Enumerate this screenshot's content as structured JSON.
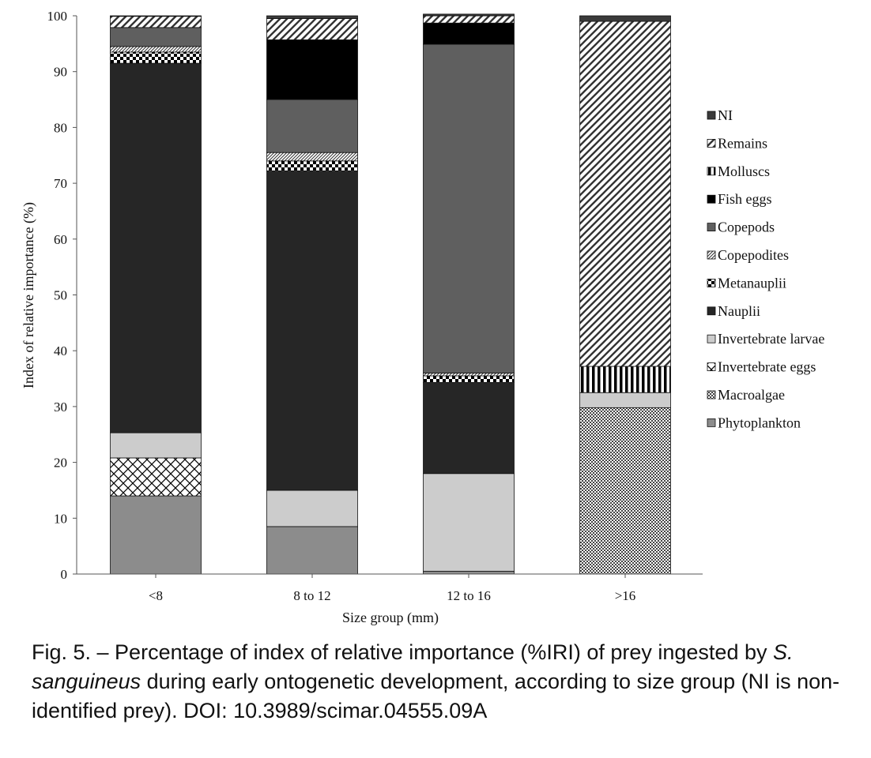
{
  "chart_data": {
    "type": "bar",
    "stacked": true,
    "xlabel": "Size group (mm)",
    "ylabel": "Index of relative importance (%)",
    "ylim": [
      0,
      100
    ],
    "yticks": [
      "0",
      "10",
      "20",
      "30",
      "40",
      "50",
      "60",
      "70",
      "80",
      "90",
      "100"
    ],
    "categories": [
      "<8",
      "8 to 12",
      "12 to 16",
      ">16"
    ],
    "legend_position": "right",
    "series": [
      {
        "name": "Phytoplankton",
        "color": "#8c8c8c",
        "pattern": "solid",
        "values": [
          14.0,
          8.5,
          0.5,
          0.0
        ]
      },
      {
        "name": "Macroalgae",
        "color": "#606060",
        "pattern": "dense-dots",
        "values": [
          0.0,
          0.0,
          0.0,
          29.8
        ]
      },
      {
        "name": "Invertebrate eggs",
        "color": "#000000",
        "pattern": "lattice",
        "values": [
          6.8,
          0.0,
          0.0,
          0.0
        ]
      },
      {
        "name": "Invertebrate larvae",
        "color": "#cccccc",
        "pattern": "solid",
        "values": [
          4.5,
          6.5,
          17.5,
          2.7
        ]
      },
      {
        "name": "Nauplii",
        "color": "#262626",
        "pattern": "solid",
        "values": [
          66.2,
          57.2,
          16.3,
          0.0
        ]
      },
      {
        "name": "Metanauplii",
        "color": "#000000",
        "pattern": "checker",
        "values": [
          2.0,
          1.8,
          1.2,
          0.0
        ]
      },
      {
        "name": "Copepodites",
        "color": "#555555",
        "pattern": "diagonal-fine",
        "values": [
          1.0,
          1.5,
          0.5,
          0.0
        ]
      },
      {
        "name": "Copepods",
        "color": "#5f5f5f",
        "pattern": "solid",
        "values": [
          3.4,
          9.5,
          58.9,
          0.0
        ]
      },
      {
        "name": "Fish eggs",
        "color": "#000000",
        "pattern": "solid",
        "values": [
          0.0,
          10.7,
          3.8,
          0.0
        ]
      },
      {
        "name": "Molluscs",
        "color": "#000000",
        "pattern": "vertical",
        "values": [
          0.0,
          0.0,
          0.0,
          4.7
        ]
      },
      {
        "name": "Remains",
        "color": "#333333",
        "pattern": "diagonal",
        "values": [
          2.0,
          3.8,
          1.3,
          61.8
        ]
      },
      {
        "name": "NI",
        "color": "#3a3a3a",
        "pattern": "solid",
        "values": [
          0.1,
          0.5,
          0.3,
          1.0
        ]
      }
    ]
  },
  "caption": {
    "prefix": "Fig. 5. – Percentage of index of relative importance (%IRI) of prey ingested by ",
    "species": "S. sanguineus",
    "suffix": " during early ontogenetic development, according to size group (NI is non-identified prey). DOI: 10.3989/scimar.04555.09A"
  }
}
